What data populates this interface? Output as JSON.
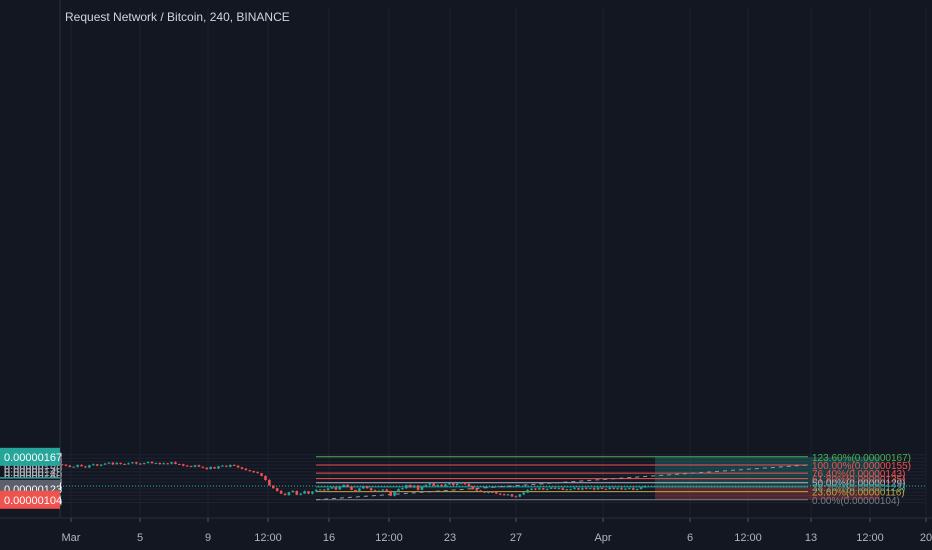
{
  "header": {
    "title": "Request Network / Bitcoin, 240, BINANCE"
  },
  "colors": {
    "background": "#131722",
    "grid": "#1e2230",
    "up": "#26a69a",
    "down": "#ef5350",
    "axis_text": "#b2b5be",
    "profit_zone": "#26a69a",
    "loss_zone": "#ef5350"
  },
  "chart_data": {
    "type": "candlestick",
    "title": "Request Network / Bitcoin, 240, BINANCE",
    "ylim": [
      9.7e-07,
      1.71e-06
    ],
    "y_ticks": [
      "0.00000170",
      "0.00000165",
      "0.00000160",
      "0.00000155",
      "0.00000150",
      "0.00000145",
      "0.00000140",
      "0.00000135",
      "0.00000130",
      "0.00000125",
      "0.00000120",
      "0.00000115",
      "0.00000110",
      "0.00000105",
      "0.00000100"
    ],
    "x_ticks": [
      "Mar",
      "5",
      "9",
      "12:00",
      "16",
      "12:00",
      "23",
      "27",
      "Apr",
      "6",
      "12:00",
      "13",
      "12:00",
      "20"
    ],
    "price_badges": [
      {
        "label": "0.00000167",
        "value": 1.67e-06,
        "color": "#26a69a"
      },
      {
        "label": "0.00000124",
        "value": 1.24e-06,
        "color": "#26a69a"
      },
      {
        "label": "02:42:20",
        "value": 1.218e-06,
        "color": "#131722"
      },
      {
        "label": "0.00000123",
        "value": 1.198e-06,
        "color": "#5d606b"
      },
      {
        "label": "0.00000104",
        "value": 1.04e-06,
        "color": "#ef5350"
      }
    ],
    "current_price": 1.24e-06,
    "fib_levels": [
      {
        "label": "123.60%(0.00000167)",
        "value": 1.67e-06,
        "color": "#4caf50"
      },
      {
        "label": "100.00%(0.00000155)",
        "value": 1.55e-06,
        "color": "#ef5350"
      },
      {
        "label": "76.40%(0.00000143)",
        "value": 1.43e-06,
        "color": "#ef5350"
      },
      {
        "label": "61.80%(0.00000135)",
        "value": 1.35e-06,
        "color": "#ef5350"
      },
      {
        "label": "50.00%(0.00000129)",
        "value": 1.29e-06,
        "color": "#b2b5be"
      },
      {
        "label": "38.20%(0.00000123)",
        "value": 1.23e-06,
        "color": "#26a69a"
      },
      {
        "label": "23.60%(0.00000116)",
        "value": 1.16e-06,
        "color": "#c7a13c"
      },
      {
        "label": "0.00%(0.00000104)",
        "value": 1.04e-06,
        "color": "#787b86"
      }
    ],
    "long_position": {
      "entry": 1.24e-06,
      "target": 1.67e-06,
      "stop": 1.04e-06
    },
    "trend_line": {
      "from": 1.04e-06,
      "to": 1.55e-06
    },
    "candle_closes": [
      1.555e-06,
      1.54e-06,
      1.52e-06,
      1.525e-06,
      1.55e-06,
      1.53e-06,
      1.515e-06,
      1.545e-06,
      1.56e-06,
      1.54e-06,
      1.555e-06,
      1.57e-06,
      1.585e-06,
      1.56e-06,
      1.58e-06,
      1.565e-06,
      1.56e-06,
      1.575e-06,
      1.59e-06,
      1.57e-06,
      1.565e-06,
      1.58e-06,
      1.595e-06,
      1.575e-06,
      1.58e-06,
      1.565e-06,
      1.575e-06,
      1.57e-06,
      1.59e-06,
      1.565e-06,
      1.56e-06,
      1.54e-06,
      1.535e-06,
      1.525e-06,
      1.545e-06,
      1.525e-06,
      1.51e-06,
      1.49e-06,
      1.52e-06,
      1.5e-06,
      1.53e-06,
      1.54e-06,
      1.525e-06,
      1.55e-06,
      1.54e-06,
      1.515e-06,
      1.495e-06,
      1.475e-06,
      1.46e-06,
      1.445e-06,
      1.43e-06,
      1.39e-06,
      1.33e-06,
      1.25e-06,
      1.21e-06,
      1.17e-06,
      1.13e-06,
      1.11e-06,
      1.15e-06,
      1.17e-06,
      1.115e-06,
      1.13e-06,
      1.165e-06,
      1.13e-06,
      1.16e-06,
      1.185e-06,
      1.19e-06,
      1.18e-06,
      1.205e-06,
      1.22e-06,
      1.19e-06,
      1.235e-06,
      1.26e-06,
      1.23e-06,
      1.185e-06,
      1.16e-06,
      1.205e-06,
      1.24e-06,
      1.21e-06,
      1.18e-06,
      1.165e-06,
      1.175e-06,
      1.19e-06,
      1.17e-06,
      1.1e-06,
      1.16e-06,
      1.195e-06,
      1.21e-06,
      1.255e-06,
      1.22e-06,
      1.25e-06,
      1.185e-06,
      1.235e-06,
      1.26e-06,
      1.28e-06,
      1.245e-06,
      1.26e-06,
      1.24e-06,
      1.265e-06,
      1.285e-06,
      1.255e-06,
      1.275e-06,
      1.29e-06,
      1.27e-06,
      1.24e-06,
      1.195e-06,
      1.175e-06,
      1.16e-06,
      1.145e-06,
      1.155e-06,
      1.15e-06,
      1.13e-06,
      1.12e-06,
      1.11e-06,
      1.12e-06,
      1.09e-06,
      1.085e-06,
      1.12e-06,
      1.145e-06,
      1.185e-06,
      1.205e-06,
      1.19e-06,
      1.21e-06,
      1.19e-06,
      1.2e-06,
      1.215e-06,
      1.205e-06,
      1.21e-06,
      1.185e-06,
      1.195e-06,
      1.195e-06,
      1.21e-06,
      1.19e-06,
      1.21e-06,
      1.205e-06,
      1.21e-06,
      1.19e-06,
      1.215e-06,
      1.2e-06,
      1.195e-06,
      1.215e-06,
      1.2e-06,
      1.21e-06,
      1.19e-06,
      1.205e-06,
      1.21e-06,
      1.185e-06,
      1.2e-06,
      1.22e-06,
      1.24e-06
    ]
  }
}
